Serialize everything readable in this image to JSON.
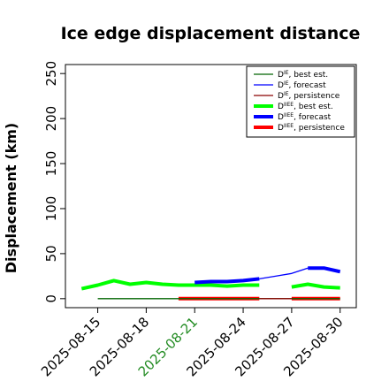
{
  "chart_data": {
    "type": "line",
    "title": "Ice edge displacement distance",
    "xlabel": "",
    "ylabel": "Displacement (km)",
    "ylim": [
      -10,
      260
    ],
    "yticks": [
      0,
      50,
      100,
      150,
      200,
      250
    ],
    "x_start": "2025-08-13",
    "x_end": "2025-08-31",
    "xtick_labels": [
      "2025-08-15",
      "2025-08-18",
      "2025-08-21",
      "2025-08-24",
      "2025-08-27",
      "2025-08-30"
    ],
    "highlight_tick": "2025-08-21",
    "highlight_color": "#228b22",
    "grid": false,
    "legend_position": "top-right",
    "series": [
      {
        "name": "D^IE, best est.",
        "base": "D",
        "sup": "IE",
        "suffix": ", best est.",
        "color": "#006400",
        "width": "thin",
        "style": "solid",
        "x": [
          "2025-08-15",
          "2025-08-16",
          "2025-08-17",
          "2025-08-18",
          "2025-08-19",
          "2025-08-20",
          "2025-08-21",
          "2025-08-22",
          "2025-08-23",
          "2025-08-24",
          "2025-08-25",
          "2025-08-26",
          "2025-08-27",
          "2025-08-28",
          "2025-08-29",
          "2025-08-30"
        ],
        "y": [
          0,
          0,
          0,
          0,
          0,
          0,
          0,
          0,
          0,
          0,
          0,
          0,
          0,
          0,
          0,
          0
        ]
      },
      {
        "name": "D^IE, forecast",
        "base": "D",
        "sup": "IE",
        "suffix": ", forecast",
        "color": "#0000ff",
        "width": "thin",
        "style": "solid",
        "x": [
          "2025-08-25",
          "2025-08-26",
          "2025-08-27",
          "2025-08-28"
        ],
        "y": [
          22,
          25,
          28,
          34
        ]
      },
      {
        "name": "D^IE, persistence",
        "base": "D",
        "sup": "IE",
        "suffix": ", persistence",
        "color": "#8b0000",
        "width": "thin",
        "style": "solid",
        "x": [
          "2025-08-25",
          "2025-08-26",
          "2025-08-27"
        ],
        "y": [
          0,
          0,
          0
        ]
      },
      {
        "name": "D^IIEE, best est.",
        "base": "D",
        "sup": "IIEE",
        "suffix": ", best est.",
        "color": "#00ff00",
        "width": "thick",
        "style": "solid",
        "segments": [
          {
            "x": [
              "2025-08-14",
              "2025-08-15",
              "2025-08-16",
              "2025-08-17",
              "2025-08-18",
              "2025-08-19",
              "2025-08-20",
              "2025-08-21",
              "2025-08-22",
              "2025-08-23",
              "2025-08-24",
              "2025-08-25"
            ],
            "y": [
              11,
              15,
              20,
              16,
              18,
              16,
              15,
              15,
              15,
              14,
              15,
              15
            ]
          },
          {
            "x": [
              "2025-08-27",
              "2025-08-28",
              "2025-08-29",
              "2025-08-30"
            ],
            "y": [
              13,
              16,
              13,
              12
            ]
          }
        ]
      },
      {
        "name": "D^IIEE, forecast",
        "base": "D",
        "sup": "IIEE",
        "suffix": ", forecast",
        "color": "#0000ff",
        "width": "thick",
        "style": "solid",
        "segments": [
          {
            "x": [
              "2025-08-21",
              "2025-08-22",
              "2025-08-23",
              "2025-08-24",
              "2025-08-25"
            ],
            "y": [
              18,
              19,
              19,
              20,
              22
            ]
          },
          {
            "x": [
              "2025-08-28",
              "2025-08-29",
              "2025-08-30"
            ],
            "y": [
              34,
              34,
              30
            ]
          }
        ]
      },
      {
        "name": "D^IIEE, persistence",
        "base": "D",
        "sup": "IIEE",
        "suffix": ", persistence",
        "color": "#ff0000",
        "width": "thick",
        "style": "solid",
        "segments": [
          {
            "x": [
              "2025-08-20",
              "2025-08-21",
              "2025-08-22",
              "2025-08-23",
              "2025-08-24",
              "2025-08-25"
            ],
            "y": [
              0,
              0,
              0,
              0,
              0,
              0
            ]
          },
          {
            "x": [
              "2025-08-27",
              "2025-08-28",
              "2025-08-29",
              "2025-08-30"
            ],
            "y": [
              0,
              0,
              0,
              0
            ]
          }
        ]
      }
    ]
  }
}
